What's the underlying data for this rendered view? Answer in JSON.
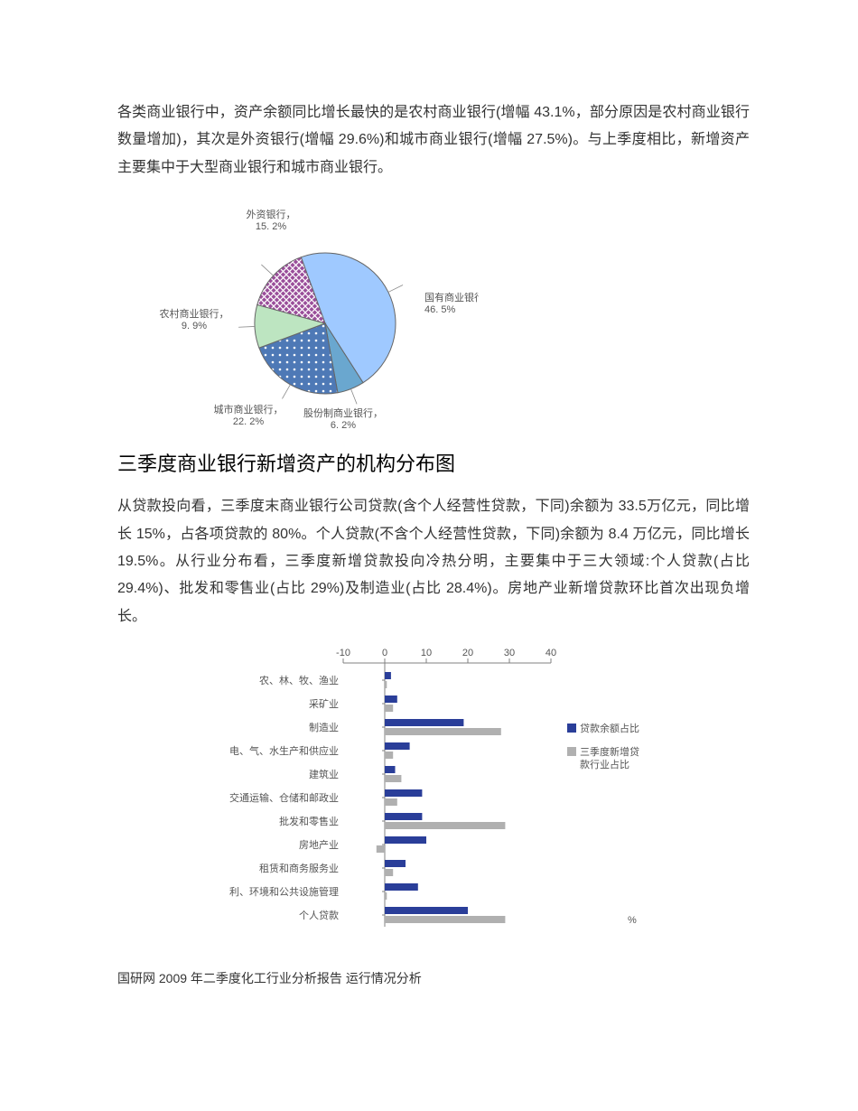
{
  "para1": "各类商业银行中，资产余额同比增长最快的是农村商业银行(增幅 43.1%，部分原因是农村商业银行数量增加)，其次是外资银行(增幅 29.6%)和城市商业银行(增幅 27.5%)。与上季度相比，新增资产主要集中于大型商业银行和城市商业银行。",
  "pie_chart": {
    "type": "pie",
    "title": "三季度商业银行新增资产的机构分布图",
    "background_color": "#ffffff",
    "border_color": "#666666",
    "label_fontsize": 11,
    "label_color": "#555555",
    "slices": [
      {
        "name": "国有商业银行，",
        "pct": "46. 5%",
        "value": 46.5,
        "fill": "#9fc9ff",
        "pattern": "none"
      },
      {
        "name": "股份制商业银行，",
        "pct": "6. 2%",
        "value": 6.2,
        "fill": "#6aa7cf",
        "pattern": "none"
      },
      {
        "name": "城市商业银行，",
        "pct": "22. 2%",
        "value": 22.2,
        "fill": "#4e79b6",
        "pattern": "dots-white"
      },
      {
        "name": "农村商业银行，",
        "pct": "9. 9%",
        "value": 9.9,
        "fill": "#bde5c1",
        "pattern": "none"
      },
      {
        "name": "外资银行，",
        "pct": "15. 2%",
        "value": 15.2,
        "fill": "#9a4e9a",
        "pattern": "diag-white"
      }
    ]
  },
  "para2": "从贷款投向看，三季度末商业银行公司贷款(含个人经营性贷款，下同)余额为 33.5万亿元，同比增长 15%，占各项贷款的 80%。个人贷款(不含个人经营性贷款，下同)余额为 8.4 万亿元，同比增长 19.5%。从行业分布看，三季度新增贷款投向冷热分明，主要集中于三大领域:个人贷款(占比 29.4%)、批发和零售业(占比 29%)及制造业(占比 28.4%)。房地产业新增贷款环比首次出现负增长。",
  "bar_chart": {
    "type": "bar-horizontal-grouped",
    "xlim": [
      -10,
      40
    ],
    "xticks": [
      -10,
      0,
      10,
      20,
      30,
      40
    ],
    "axis_color": "#808080",
    "grid_color": "#c0c0c0",
    "label_fontsize": 11,
    "label_color": "#555555",
    "unit_label": "%",
    "legend": [
      {
        "label": "贷款余额占比",
        "color": "#2a3e99"
      },
      {
        "label": "三季度新增贷款行业占比",
        "color": "#b0b0b0"
      }
    ],
    "categories": [
      {
        "label": "农、林、牧、渔业",
        "v1": 1.5,
        "v2": 0.5
      },
      {
        "label": "采矿业",
        "v1": 3.0,
        "v2": 2.0
      },
      {
        "label": "制造业",
        "v1": 19.0,
        "v2": 28.0
      },
      {
        "label": "电、气、水生产和供应业",
        "v1": 6.0,
        "v2": 2.0
      },
      {
        "label": "建筑业",
        "v1": 2.5,
        "v2": 4.0
      },
      {
        "label": "交通运输、仓储和邮政业",
        "v1": 9.0,
        "v2": 3.0
      },
      {
        "label": "批发和零售业",
        "v1": 9.0,
        "v2": 29.0
      },
      {
        "label": "房地产业",
        "v1": 10.0,
        "v2": -2.0
      },
      {
        "label": "租赁和商务服务业",
        "v1": 5.0,
        "v2": 2.0
      },
      {
        "label": "利、环境和公共设施管理",
        "v1": 8.0,
        "v2": 0.5
      },
      {
        "label": "个人贷款",
        "v1": 20.0,
        "v2": 29.0
      }
    ]
  },
  "footer": "国研网 2009 年二季度化工行业分析报告 运行情况分析"
}
